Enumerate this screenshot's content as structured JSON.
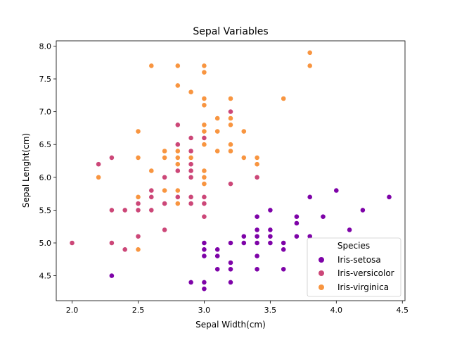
{
  "chart_data": {
    "type": "scatter",
    "title": "Sepal Variables",
    "xlabel": "Sepal Width(cm)",
    "ylabel": "Sepal Lenght(cm)",
    "xlim": [
      1.88,
      4.52
    ],
    "ylim": [
      4.12,
      8.08
    ],
    "xticks": [
      2.0,
      2.5,
      3.0,
      3.5,
      4.0,
      4.5
    ],
    "yticks": [
      4.5,
      5.0,
      5.5,
      6.0,
      6.5,
      7.0,
      7.5,
      8.0
    ],
    "grid": false,
    "legend": {
      "title": "Species",
      "placement": "lower-right"
    },
    "series": [
      {
        "name": "Iris-setosa",
        "color": "#7e03a8",
        "points": [
          [
            3.5,
            5.1
          ],
          [
            3.0,
            4.9
          ],
          [
            3.2,
            4.7
          ],
          [
            3.1,
            4.6
          ],
          [
            3.6,
            5.0
          ],
          [
            3.9,
            5.4
          ],
          [
            3.4,
            4.6
          ],
          [
            3.4,
            5.0
          ],
          [
            2.9,
            4.4
          ],
          [
            3.1,
            4.9
          ],
          [
            3.7,
            5.4
          ],
          [
            3.4,
            4.8
          ],
          [
            3.0,
            4.8
          ],
          [
            3.0,
            4.3
          ],
          [
            4.0,
            5.8
          ],
          [
            4.4,
            5.7
          ],
          [
            3.9,
            5.4
          ],
          [
            3.5,
            5.1
          ],
          [
            3.8,
            5.7
          ],
          [
            3.8,
            5.1
          ],
          [
            3.4,
            5.4
          ],
          [
            3.7,
            5.1
          ],
          [
            3.6,
            4.6
          ],
          [
            3.3,
            5.1
          ],
          [
            3.4,
            4.8
          ],
          [
            3.0,
            5.0
          ],
          [
            3.4,
            5.0
          ],
          [
            3.5,
            5.2
          ],
          [
            3.4,
            5.2
          ],
          [
            3.2,
            4.7
          ],
          [
            3.1,
            4.8
          ],
          [
            3.4,
            5.4
          ],
          [
            4.1,
            5.2
          ],
          [
            4.2,
            5.5
          ],
          [
            3.1,
            4.9
          ],
          [
            3.2,
            5.0
          ],
          [
            3.5,
            5.5
          ],
          [
            3.6,
            4.9
          ],
          [
            3.0,
            4.4
          ],
          [
            3.4,
            5.1
          ],
          [
            3.5,
            5.0
          ],
          [
            2.3,
            4.5
          ],
          [
            3.2,
            4.4
          ],
          [
            3.5,
            5.0
          ],
          [
            3.8,
            5.1
          ],
          [
            3.0,
            4.8
          ],
          [
            3.8,
            5.1
          ],
          [
            3.2,
            4.6
          ],
          [
            3.7,
            5.3
          ],
          [
            3.3,
            5.0
          ]
        ]
      },
      {
        "name": "Iris-versicolor",
        "color": "#cc4778",
        "points": [
          [
            3.2,
            7.0
          ],
          [
            3.2,
            6.4
          ],
          [
            3.1,
            6.9
          ],
          [
            2.3,
            5.5
          ],
          [
            2.8,
            6.5
          ],
          [
            2.8,
            5.7
          ],
          [
            3.3,
            6.3
          ],
          [
            2.4,
            4.9
          ],
          [
            2.9,
            6.6
          ],
          [
            2.7,
            5.2
          ],
          [
            2.0,
            5.0
          ],
          [
            3.0,
            5.9
          ],
          [
            2.2,
            6.0
          ],
          [
            2.9,
            6.1
          ],
          [
            2.9,
            5.6
          ],
          [
            3.1,
            6.7
          ],
          [
            3.0,
            5.6
          ],
          [
            2.7,
            5.8
          ],
          [
            2.2,
            6.2
          ],
          [
            2.5,
            5.6
          ],
          [
            3.2,
            5.9
          ],
          [
            2.8,
            6.1
          ],
          [
            2.5,
            6.3
          ],
          [
            2.8,
            6.1
          ],
          [
            2.9,
            6.4
          ],
          [
            3.0,
            6.6
          ],
          [
            2.8,
            6.8
          ],
          [
            3.0,
            6.7
          ],
          [
            2.9,
            6.0
          ],
          [
            2.6,
            5.7
          ],
          [
            2.4,
            5.5
          ],
          [
            2.4,
            5.5
          ],
          [
            2.7,
            5.8
          ],
          [
            2.7,
            6.0
          ],
          [
            3.0,
            5.4
          ],
          [
            3.4,
            6.0
          ],
          [
            3.1,
            6.7
          ],
          [
            2.3,
            6.3
          ],
          [
            3.0,
            5.6
          ],
          [
            2.5,
            5.5
          ],
          [
            2.6,
            5.5
          ],
          [
            3.0,
            6.1
          ],
          [
            2.6,
            5.8
          ],
          [
            2.3,
            5.0
          ],
          [
            2.7,
            5.6
          ],
          [
            3.0,
            5.7
          ],
          [
            2.9,
            5.7
          ],
          [
            2.9,
            6.2
          ],
          [
            2.5,
            5.1
          ],
          [
            2.8,
            5.7
          ]
        ]
      },
      {
        "name": "Iris-virginica",
        "color": "#f89540",
        "points": [
          [
            3.3,
            6.3
          ],
          [
            2.7,
            5.8
          ],
          [
            3.0,
            7.1
          ],
          [
            2.9,
            6.3
          ],
          [
            3.0,
            6.5
          ],
          [
            3.0,
            7.6
          ],
          [
            2.5,
            4.9
          ],
          [
            2.9,
            7.3
          ],
          [
            2.5,
            6.7
          ],
          [
            3.6,
            7.2
          ],
          [
            3.2,
            6.5
          ],
          [
            2.7,
            6.4
          ],
          [
            3.0,
            6.8
          ],
          [
            2.5,
            5.7
          ],
          [
            2.8,
            5.8
          ],
          [
            3.2,
            6.4
          ],
          [
            3.0,
            6.5
          ],
          [
            3.8,
            7.7
          ],
          [
            2.6,
            7.7
          ],
          [
            2.2,
            6.0
          ],
          [
            3.2,
            6.9
          ],
          [
            2.8,
            5.6
          ],
          [
            2.8,
            7.7
          ],
          [
            2.7,
            6.3
          ],
          [
            3.3,
            6.7
          ],
          [
            3.2,
            7.2
          ],
          [
            2.8,
            6.2
          ],
          [
            3.0,
            6.1
          ],
          [
            2.8,
            6.4
          ],
          [
            3.0,
            7.2
          ],
          [
            2.8,
            7.4
          ],
          [
            3.8,
            7.9
          ],
          [
            2.8,
            6.4
          ],
          [
            2.8,
            6.3
          ],
          [
            2.6,
            6.1
          ],
          [
            3.0,
            7.7
          ],
          [
            3.4,
            6.3
          ],
          [
            3.1,
            6.4
          ],
          [
            3.0,
            6.0
          ],
          [
            3.1,
            6.9
          ],
          [
            3.1,
            6.7
          ],
          [
            3.1,
            6.9
          ],
          [
            2.7,
            5.8
          ],
          [
            3.2,
            6.8
          ],
          [
            3.3,
            6.7
          ],
          [
            3.0,
            6.7
          ],
          [
            2.5,
            6.3
          ],
          [
            3.0,
            6.5
          ],
          [
            3.4,
            6.2
          ],
          [
            3.0,
            5.9
          ]
        ]
      }
    ]
  }
}
